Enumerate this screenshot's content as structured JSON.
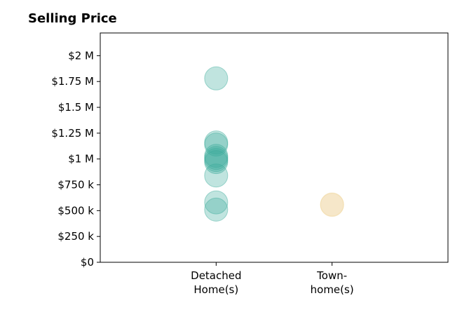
{
  "chart_data": {
    "type": "scatter",
    "title": "Selling Price",
    "xlabel": "",
    "ylabel": "",
    "categories": [
      {
        "lines": [
          "Detached",
          "Home(s)"
        ],
        "color": "#3aaa9a"
      },
      {
        "lines": [
          "Town-",
          "home(s)"
        ],
        "color": "#f0d49a"
      }
    ],
    "yticks": [
      {
        "value": 0,
        "label": "$0"
      },
      {
        "value": 250000,
        "label": "$250 k"
      },
      {
        "value": 500000,
        "label": "$500 k"
      },
      {
        "value": 750000,
        "label": "$750 k"
      },
      {
        "value": 1000000,
        "label": "$1 M"
      },
      {
        "value": 1250000,
        "label": "$1.25 M"
      },
      {
        "value": 1500000,
        "label": "$1.5 M"
      },
      {
        "value": 1750000,
        "label": "$1.75 M"
      },
      {
        "value": 2000000,
        "label": "$2 M"
      }
    ],
    "ylim": [
      0,
      2220000
    ],
    "xlim": [
      -1,
      2
    ],
    "grid": false,
    "series": [
      {
        "category": 0,
        "values": [
          1780000,
          1160000,
          1140000,
          1030000,
          1010000,
          990000,
          970000,
          840000,
          580000,
          510000
        ]
      },
      {
        "category": 1,
        "values": [
          560000,
          555000
        ]
      }
    ]
  }
}
